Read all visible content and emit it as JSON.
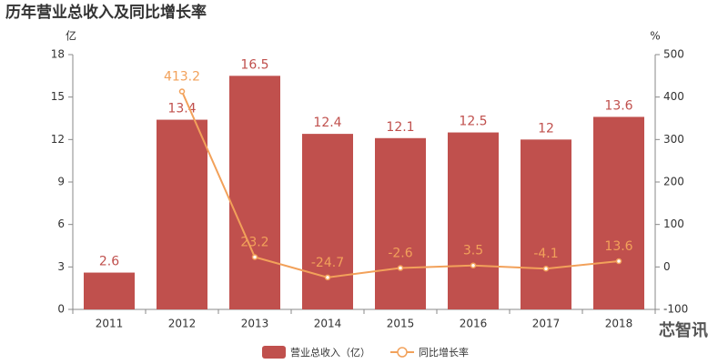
{
  "chart_data": {
    "type": "combo",
    "title": "历年营业总收入及同比增长率",
    "y_label": "亿",
    "y2_label": "%",
    "categories": [
      "2011",
      "2012",
      "2013",
      "2014",
      "2015",
      "2016",
      "2017",
      "2018"
    ],
    "series": [
      {
        "name": "营业总收入（亿）",
        "type": "bar",
        "color": "#c0504d",
        "values": [
          2.6,
          13.4,
          16.5,
          12.4,
          12.1,
          12.5,
          12,
          13.6
        ]
      },
      {
        "name": "同比增长率",
        "type": "line",
        "axis": "y2",
        "color": "#f2a15a",
        "values": [
          null,
          413.2,
          23.2,
          -24.7,
          -2.6,
          3.5,
          -4.1,
          13.6
        ]
      }
    ],
    "ylim": [
      0,
      18
    ],
    "yticks": [
      0,
      3,
      6,
      9,
      12,
      15,
      18
    ],
    "y2lim": [
      -100,
      500
    ],
    "y2ticks": [
      -100,
      0,
      100,
      200,
      300,
      400,
      500
    ],
    "watermark": "芯智讯"
  }
}
